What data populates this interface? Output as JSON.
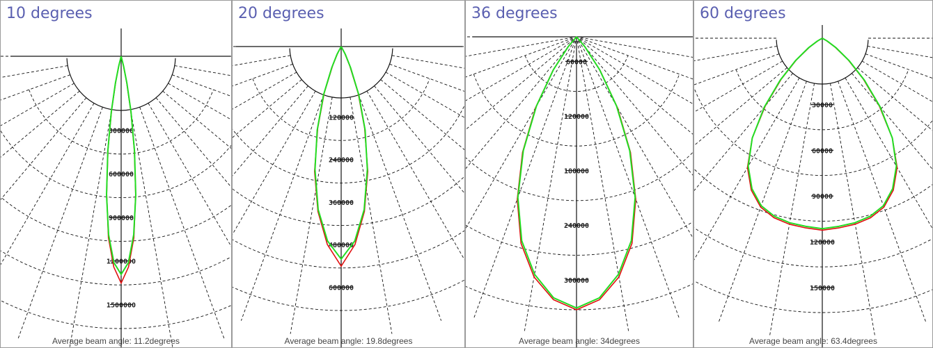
{
  "colors": {
    "title": "#5a5fb0",
    "series_c0": "#e01010",
    "series_c90": "#22dd22",
    "grid": "#111111"
  },
  "chart_data": [
    {
      "type": "polar-intensity",
      "title": "10 degrees",
      "caption": "Average beam angle: 11.2degrees",
      "rings": [
        "300000",
        "600000",
        "900000",
        "1200000",
        "1500000"
      ],
      "ring_max": 1500000,
      "grid_step_deg": 10,
      "series": [
        {
          "color": "#e01010",
          "angles": [
            0,
            2,
            4,
            6,
            8,
            10,
            12,
            14
          ],
          "values": [
            1560000,
            1450000,
            1250000,
            950000,
            650000,
            380000,
            180000,
            60000
          ]
        },
        {
          "color": "#22dd22",
          "angles": [
            0,
            2,
            4,
            6,
            8,
            10,
            12,
            14
          ],
          "values": [
            1500000,
            1420000,
            1230000,
            960000,
            660000,
            390000,
            190000,
            70000
          ]
        }
      ]
    },
    {
      "type": "polar-intensity",
      "title": "20 degrees",
      "caption": "Average beam angle: 19.8degrees",
      "rings": [
        "120000",
        "240000",
        "360000",
        "480000",
        "600000"
      ],
      "ring_max": 600000,
      "grid_step_deg": 10,
      "series": [
        {
          "color": "#e01010",
          "angles": [
            0,
            4,
            8,
            12,
            16,
            20,
            24,
            28
          ],
          "values": [
            620000,
            560000,
            470000,
            360000,
            240000,
            140000,
            60000,
            20000
          ]
        },
        {
          "color": "#22dd22",
          "angles": [
            0,
            4,
            8,
            12,
            16,
            20,
            24,
            28
          ],
          "values": [
            600000,
            550000,
            465000,
            355000,
            245000,
            145000,
            65000,
            25000
          ]
        }
      ]
    },
    {
      "type": "polar-intensity",
      "title": "36 degrees",
      "caption": "Average beam angle: 34degrees",
      "rings": [
        "60000",
        "120000",
        "180000",
        "240000",
        "300000"
      ],
      "ring_max": 300000,
      "grid_step_deg": 10,
      "series": [
        {
          "color": "#e01010",
          "angles": [
            0,
            5,
            10,
            15,
            20,
            25,
            30,
            35,
            40
          ],
          "values": [
            300000,
            290000,
            268000,
            235000,
            190000,
            140000,
            90000,
            45000,
            15000
          ]
        },
        {
          "color": "#22dd22",
          "angles": [
            0,
            5,
            10,
            15,
            20,
            25,
            30,
            35,
            40
          ],
          "values": [
            298000,
            288000,
            265000,
            232000,
            188000,
            138000,
            88000,
            44000,
            14000
          ]
        }
      ]
    },
    {
      "type": "polar-intensity",
      "title": "60 degrees",
      "caption": "Average beam angle: 63.4degrees",
      "rings": [
        "30000",
        "60000",
        "90000",
        "120000",
        "150000"
      ],
      "ring_max": 150000,
      "grid_step_deg": 10,
      "series": [
        {
          "color": "#e01010",
          "angles": [
            0,
            5,
            10,
            15,
            20,
            25,
            30,
            35,
            40,
            45,
            50,
            55,
            60
          ],
          "values": [
            126000,
            125000,
            124000,
            122000,
            118000,
            110000,
            98000,
            80000,
            58000,
            38000,
            22000,
            10000,
            3000
          ]
        },
        {
          "color": "#22dd22",
          "angles": [
            0,
            5,
            10,
            15,
            20,
            25,
            30,
            35,
            40,
            45,
            50,
            55,
            60
          ],
          "values": [
            125000,
            124000,
            123000,
            121000,
            117000,
            109000,
            97000,
            80000,
            59000,
            39000,
            23000,
            11000,
            4000
          ]
        }
      ]
    }
  ]
}
